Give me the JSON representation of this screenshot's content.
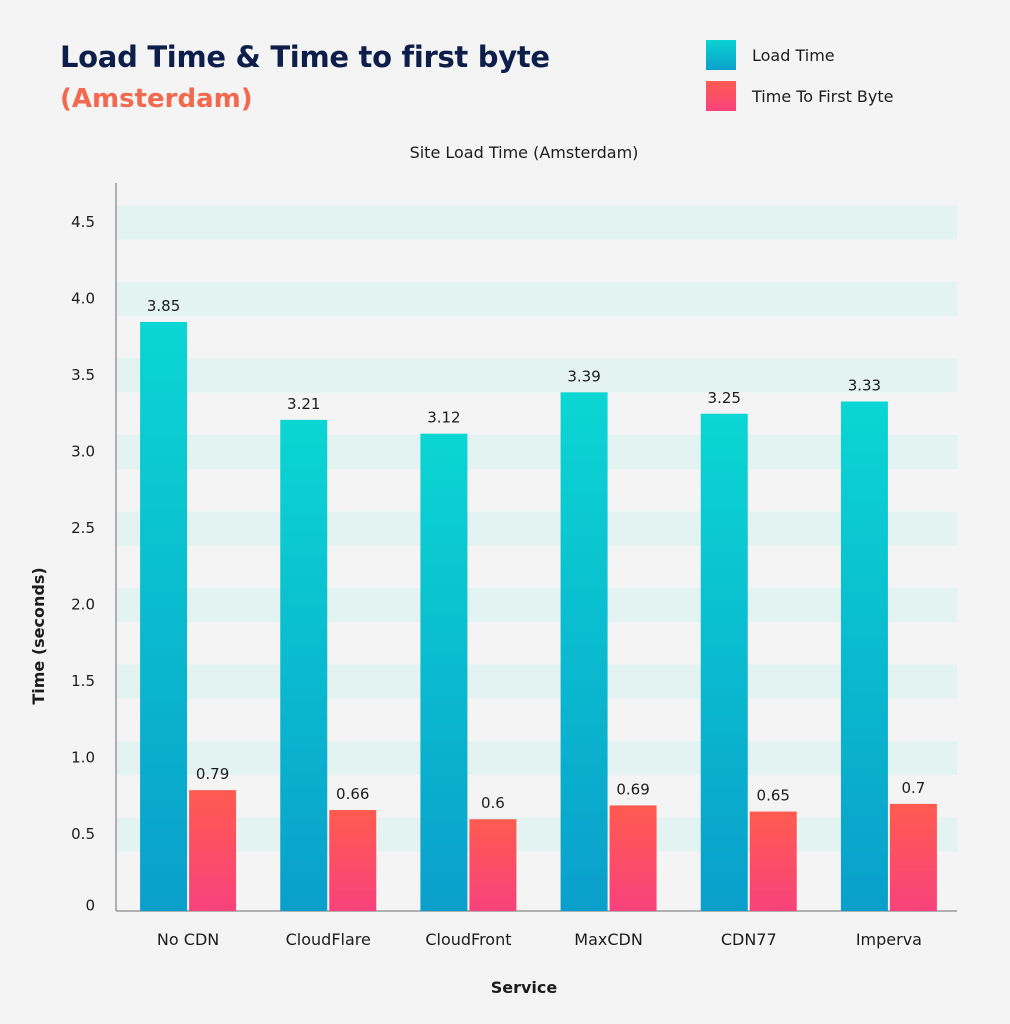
{
  "header": {
    "title": "Load Time & Time to first byte",
    "subtitle": "(Amsterdam)"
  },
  "legend": [
    {
      "label": "Load Time",
      "color": "#0bc8d2"
    },
    {
      "label": "Time To First Byte",
      "color": "#ff5a5f"
    }
  ],
  "chart_data": {
    "type": "bar",
    "title": "Site Load Time (Amsterdam)",
    "xlabel": "Service",
    "ylabel": "Time (seconds)",
    "categories": [
      "No CDN",
      "CloudFlare",
      "CloudFront",
      "MaxCDN",
      "CDN77",
      "Imperva"
    ],
    "series": [
      {
        "name": "Load Time",
        "values": [
          3.85,
          3.21,
          3.12,
          3.39,
          3.25,
          3.33
        ],
        "labels": [
          "3.85",
          "3.21",
          "3.12",
          "3.39",
          "3.25",
          "3.33"
        ],
        "color_top": "#0bd6d3",
        "color_bottom": "#0a9fcb"
      },
      {
        "name": "Time To First Byte",
        "values": [
          0.79,
          0.66,
          0.6,
          0.69,
          0.65,
          0.7
        ],
        "labels": [
          "0.79",
          "0.66",
          "0.6",
          "0.69",
          "0.65",
          "0.7"
        ],
        "color_top": "#ff5b50",
        "color_bottom": "#f7427c"
      }
    ],
    "yticks": [
      "0",
      "0.5",
      "1.0",
      "1.5",
      "2.0",
      "2.5",
      "3.0",
      "3.5",
      "4.0",
      "4.5"
    ],
    "ylim": [
      0,
      4.75
    ],
    "grid": "horizontal bands",
    "legend_position": "top-right"
  }
}
